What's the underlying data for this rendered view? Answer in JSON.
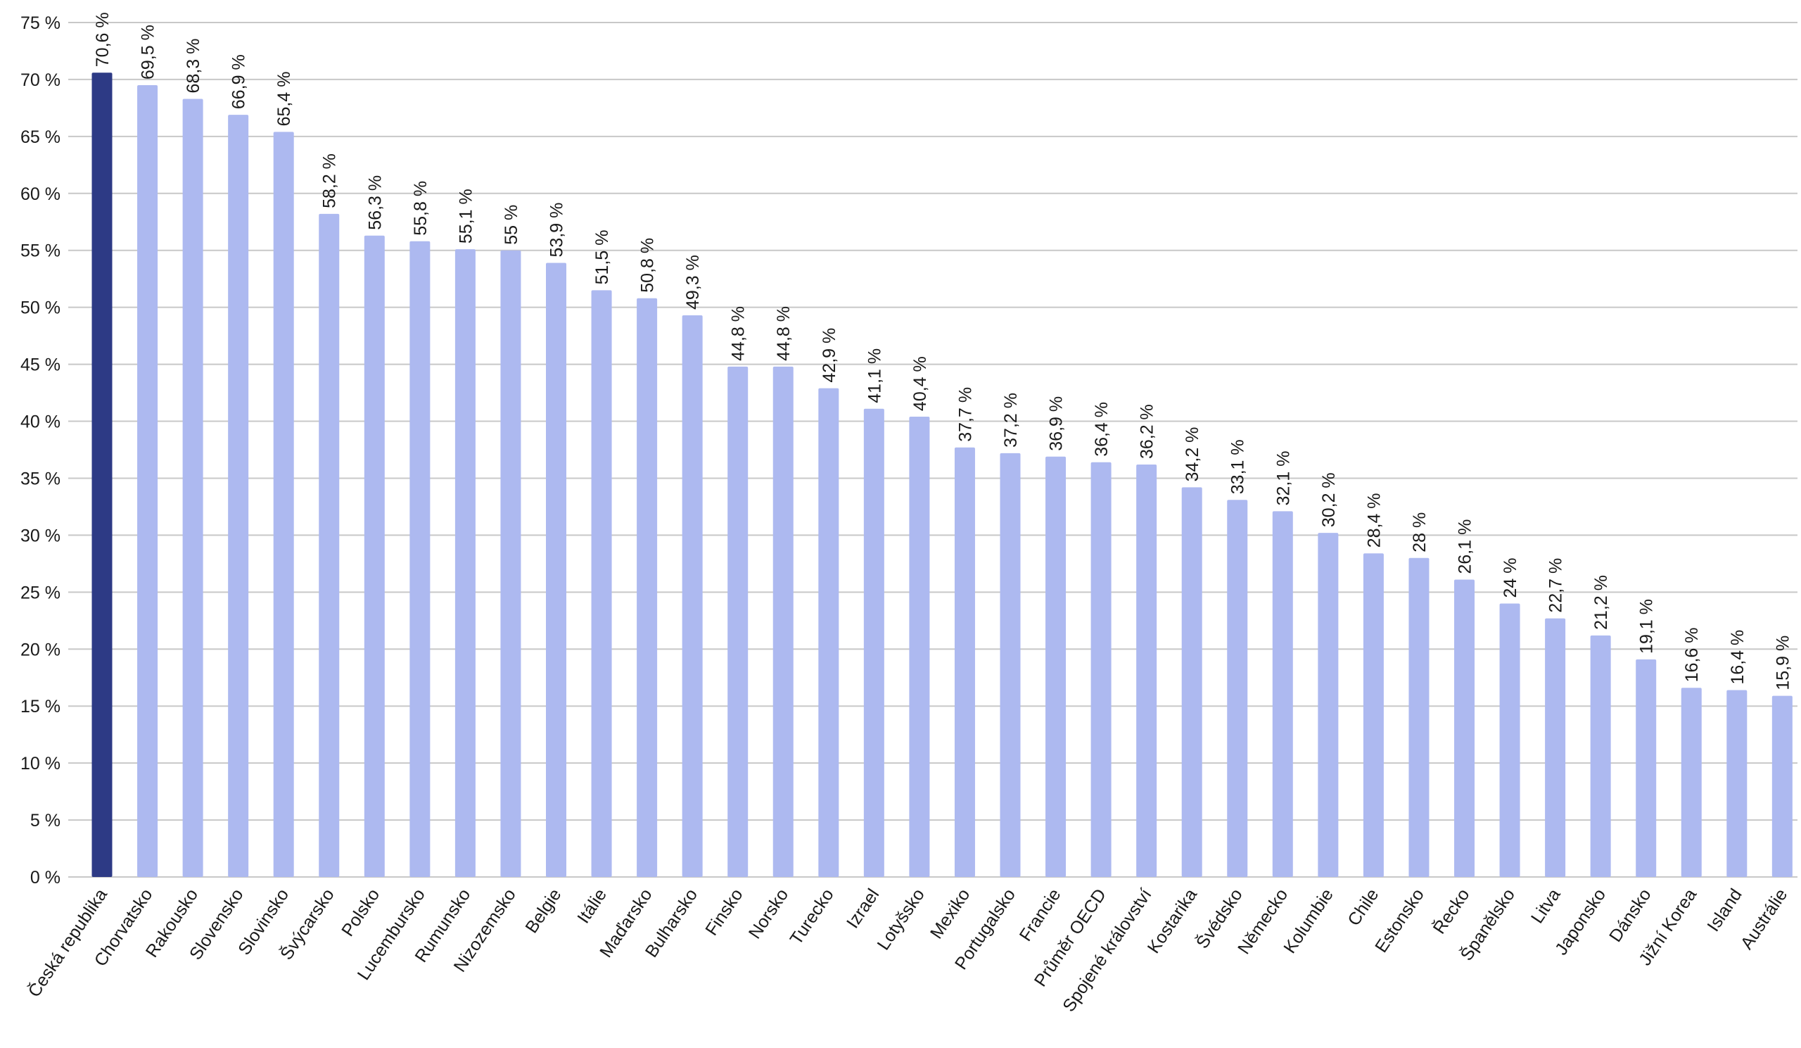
{
  "chart_data": {
    "type": "bar",
    "title": "",
    "xlabel": "",
    "ylabel": "",
    "ylim": [
      0,
      75
    ],
    "ytick_step": 5,
    "value_suffix": " %",
    "grid": true,
    "legend": "none",
    "colors": {
      "highlight": "#2d3a85",
      "bar": "#adb9f0",
      "grid": "#c8c8c8"
    },
    "categories": [
      "Česká republika",
      "Chorvatsko",
      "Rakousko",
      "Slovensko",
      "Slovinsko",
      "Švýcarsko",
      "Polsko",
      "Lucembursko",
      "Rumunsko",
      "Nizozemsko",
      "Belgie",
      "Itálie",
      "Maďarsko",
      "Bulharsko",
      "Finsko",
      "Norsko",
      "Turecko",
      "Izrael",
      "Lotyšsko",
      "Mexiko",
      "Portugalsko",
      "Francie",
      "Průměr OECD",
      "Spojené království",
      "Kostarika",
      "Švédsko",
      "Německo",
      "Kolumbie",
      "Chile",
      "Estonsko",
      "Řecko",
      "Španělsko",
      "Litva",
      "Japonsko",
      "Dánsko",
      "Jižní Korea",
      "Island",
      "Austrálie"
    ],
    "values": [
      70.6,
      69.5,
      68.3,
      66.9,
      65.4,
      58.2,
      56.3,
      55.8,
      55.1,
      55,
      53.9,
      51.5,
      50.8,
      49.3,
      44.8,
      44.8,
      42.9,
      41.1,
      40.4,
      37.7,
      37.2,
      36.9,
      36.4,
      36.2,
      34.2,
      33.1,
      32.1,
      30.2,
      28.4,
      28,
      26.1,
      24,
      22.7,
      21.2,
      19.1,
      16.6,
      16.4,
      15.9
    ],
    "labels": [
      "70,6 %",
      "69,5 %",
      "68,3 %",
      "66,9 %",
      "65,4 %",
      "58,2 %",
      "56,3 %",
      "55,8 %",
      "55,1 %",
      "55 %",
      "53,9 %",
      "51,5 %",
      "50,8 %",
      "49,3 %",
      "44,8 %",
      "44,8 %",
      "42,9 %",
      "41,1 %",
      "40,4 %",
      "37,7 %",
      "37,2 %",
      "36,9 %",
      "36,4 %",
      "36,2 %",
      "34,2 %",
      "33,1 %",
      "32,1 %",
      "30,2 %",
      "28,4 %",
      "28 %",
      "26,1 %",
      "24 %",
      "22,7 %",
      "21,2 %",
      "19,1 %",
      "16,6 %",
      "16,4 %",
      "15,9 %"
    ],
    "highlight_index": 0
  }
}
